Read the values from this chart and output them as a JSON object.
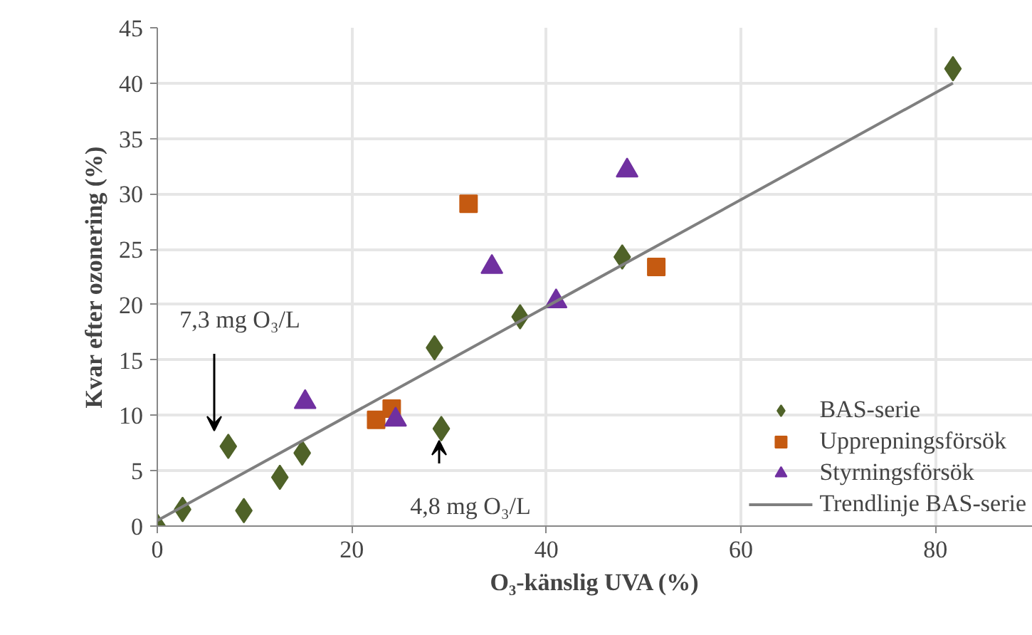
{
  "chart_data": {
    "type": "scatter",
    "xlabel": "O₃-känslig UVA (%)",
    "ylabel": "Kvar efter ozonering (%)",
    "xlim": [
      0,
      90
    ],
    "xticks": [
      0,
      20,
      40,
      60,
      80
    ],
    "ylim": [
      0,
      45
    ],
    "yticks": [
      0,
      5,
      10,
      15,
      20,
      25,
      30,
      35,
      40,
      45
    ],
    "grid": true,
    "legend": "bottom right",
    "series": [
      {
        "name": "BAS-serie",
        "marker": "diamond",
        "color": "#4f6228",
        "x": [
          0,
          2.6,
          8.9,
          7.3,
          12.6,
          14.9,
          28.5,
          29.2,
          37.3,
          47.8,
          81.8
        ],
        "values": [
          0,
          1.5,
          1.4,
          7.2,
          4.4,
          6.6,
          16.1,
          8.8,
          18.9,
          24.3,
          41.3
        ]
      },
      {
        "name": "Upprepningsförsök",
        "marker": "square",
        "color": "#c55a11",
        "x": [
          32.0,
          22.5,
          24.1,
          51.3
        ],
        "values": [
          29.1,
          9.6,
          10.6,
          23.4
        ]
      },
      {
        "name": "Styrningsförsök",
        "marker": "triangle",
        "color": "#7030a0",
        "x": [
          15.2,
          24.5,
          34.4,
          41.0,
          48.3
        ],
        "values": [
          11.2,
          9.6,
          23.4,
          20.3,
          32.1
        ]
      },
      {
        "name": "Trendlinje BAS-serie",
        "type": "line",
        "color": "#7f7f7f",
        "x": [
          0,
          81.8
        ],
        "values": [
          0.5,
          40.0
        ]
      }
    ],
    "annotations": [
      "7,3 mg O₃/L",
      "4,8 mg O₃/L"
    ]
  }
}
